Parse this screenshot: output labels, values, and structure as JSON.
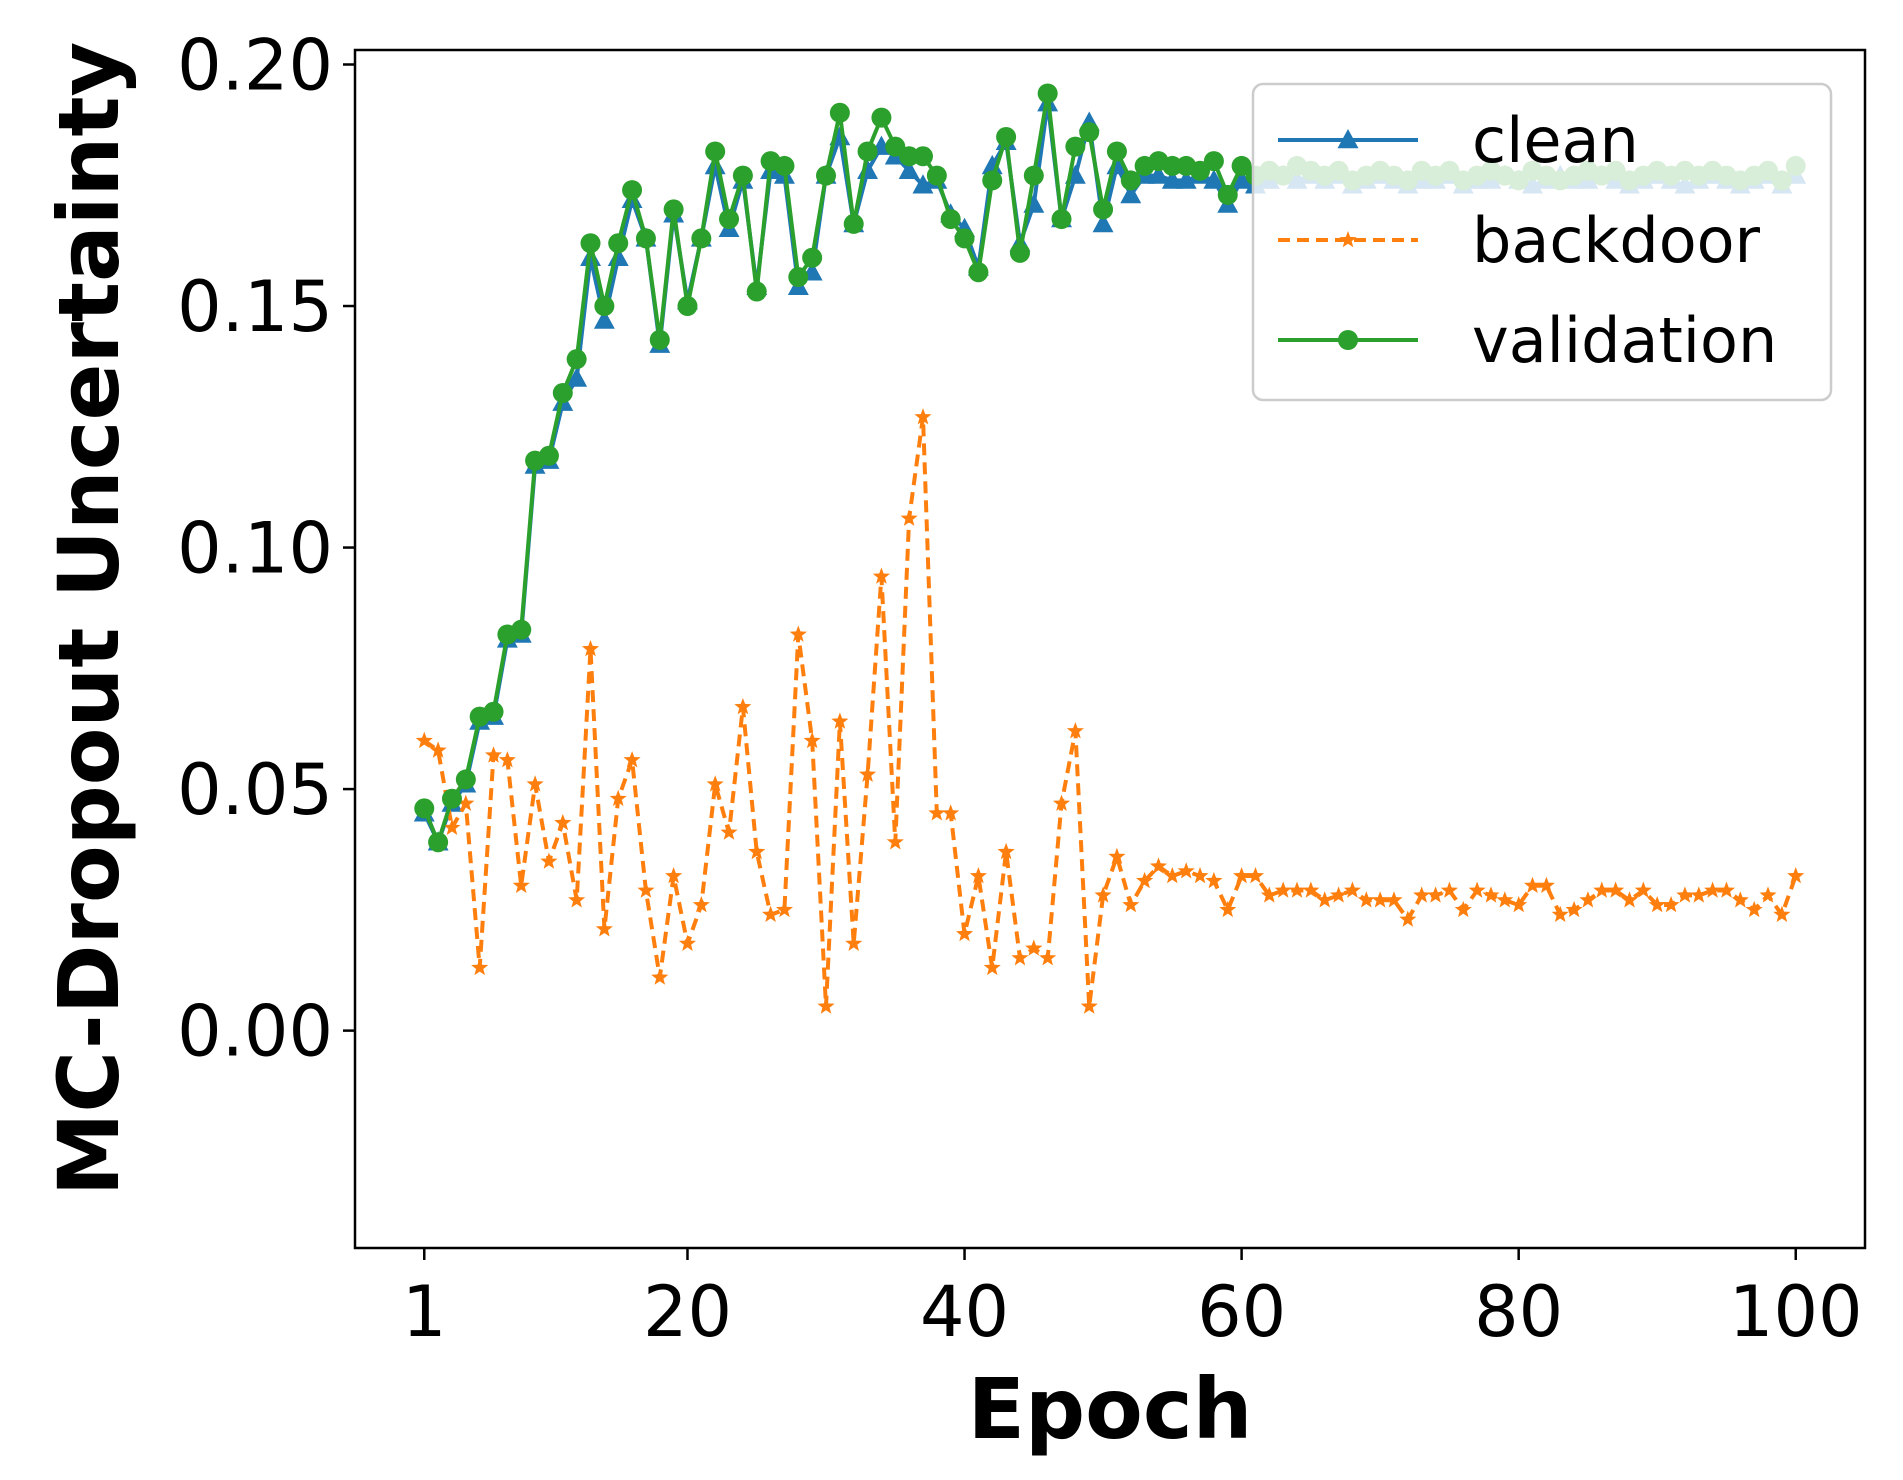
{
  "chart_data": {
    "type": "line",
    "title": "",
    "xlabel": "Epoch",
    "ylabel": "MC-Dropout Uncertainty",
    "xlim": [
      -4,
      105
    ],
    "ylim": [
      -0.045,
      0.203
    ],
    "xticks": [
      1,
      20,
      40,
      60,
      80,
      100
    ],
    "yticks": [
      0.0,
      0.05,
      0.1,
      0.15,
      0.2
    ],
    "ytick_labels": [
      "0.00",
      "0.05",
      "0.10",
      "0.15",
      "0.20"
    ],
    "grid": false,
    "legend": {
      "position": "top-right",
      "entries": [
        "clean",
        "backdoor",
        "validation"
      ]
    },
    "x": [
      1,
      2,
      3,
      4,
      5,
      6,
      7,
      8,
      9,
      10,
      11,
      12,
      13,
      14,
      15,
      16,
      17,
      18,
      19,
      20,
      21,
      22,
      23,
      24,
      25,
      26,
      27,
      28,
      29,
      30,
      31,
      32,
      33,
      34,
      35,
      36,
      37,
      38,
      39,
      40,
      41,
      42,
      43,
      44,
      45,
      46,
      47,
      48,
      49,
      50,
      51,
      52,
      53,
      54,
      55,
      56,
      57,
      58,
      59,
      60,
      61,
      62,
      63,
      64,
      65,
      66,
      67,
      68,
      69,
      70,
      71,
      72,
      73,
      74,
      75,
      76,
      77,
      78,
      79,
      80,
      81,
      82,
      83,
      84,
      85,
      86,
      87,
      88,
      89,
      90,
      91,
      92,
      93,
      94,
      95,
      96,
      97,
      98,
      99,
      100
    ],
    "series": [
      {
        "name": "clean",
        "color": "#1f77b4",
        "marker": "triangle",
        "style": "solid",
        "values": [
          0.045,
          0.039,
          0.047,
          0.051,
          0.064,
          0.065,
          0.081,
          0.082,
          0.117,
          0.118,
          0.13,
          0.135,
          0.16,
          0.147,
          0.16,
          0.172,
          0.164,
          0.142,
          0.169,
          0.151,
          0.164,
          0.179,
          0.166,
          0.176,
          0.154,
          0.178,
          0.177,
          0.154,
          0.157,
          0.177,
          0.185,
          0.167,
          0.178,
          0.183,
          0.181,
          0.178,
          0.175,
          0.176,
          0.169,
          0.166,
          0.158,
          0.179,
          0.184,
          0.163,
          0.171,
          0.192,
          0.168,
          0.177,
          0.188,
          0.167,
          0.179,
          0.173,
          0.177,
          0.177,
          0.176,
          0.176,
          0.177,
          0.176,
          0.171,
          0.176,
          0.175,
          0.176,
          0.177,
          0.176,
          0.177,
          0.176,
          0.177,
          0.175,
          0.176,
          0.177,
          0.176,
          0.175,
          0.176,
          0.176,
          0.177,
          0.175,
          0.176,
          0.176,
          0.177,
          0.176,
          0.175,
          0.176,
          0.177,
          0.176,
          0.176,
          0.177,
          0.176,
          0.175,
          0.176,
          0.177,
          0.176,
          0.175,
          0.176,
          0.177,
          0.176,
          0.175,
          0.176,
          0.177,
          0.175,
          0.177
        ]
      },
      {
        "name": "backdoor",
        "color": "#ff7f0e",
        "marker": "star",
        "style": "dashed",
        "values": [
          0.06,
          0.058,
          0.042,
          0.047,
          0.013,
          0.057,
          0.056,
          0.03,
          0.051,
          0.035,
          0.043,
          0.027,
          0.079,
          0.021,
          0.048,
          0.056,
          0.029,
          0.011,
          0.032,
          0.018,
          0.026,
          0.051,
          0.041,
          0.067,
          0.037,
          0.024,
          0.025,
          0.082,
          0.06,
          0.005,
          0.064,
          0.018,
          0.053,
          0.094,
          0.039,
          0.106,
          0.127,
          0.045,
          0.045,
          0.02,
          0.032,
          0.013,
          0.037,
          0.015,
          0.017,
          0.015,
          0.047,
          0.062,
          0.005,
          0.028,
          0.036,
          0.026,
          0.031,
          0.034,
          0.032,
          0.033,
          0.032,
          0.031,
          0.025,
          0.032,
          0.032,
          0.028,
          0.029,
          0.029,
          0.029,
          0.027,
          0.028,
          0.029,
          0.027,
          0.027,
          0.027,
          0.023,
          0.028,
          0.028,
          0.029,
          0.025,
          0.029,
          0.028,
          0.027,
          0.026,
          0.03,
          0.03,
          0.024,
          0.025,
          0.027,
          0.029,
          0.029,
          0.027,
          0.029,
          0.026,
          0.026,
          0.028,
          0.028,
          0.029,
          0.029,
          0.027,
          0.025,
          0.028,
          0.024,
          0.032
        ]
      },
      {
        "name": "validation",
        "color": "#2ca02c",
        "marker": "circle",
        "style": "solid",
        "values": [
          0.046,
          0.039,
          0.048,
          0.052,
          0.065,
          0.066,
          0.082,
          0.083,
          0.118,
          0.119,
          0.132,
          0.139,
          0.163,
          0.15,
          0.163,
          0.174,
          0.164,
          0.143,
          0.17,
          0.15,
          0.164,
          0.182,
          0.168,
          0.177,
          0.153,
          0.18,
          0.179,
          0.156,
          0.16,
          0.177,
          0.19,
          0.167,
          0.182,
          0.189,
          0.183,
          0.181,
          0.181,
          0.177,
          0.168,
          0.164,
          0.157,
          0.176,
          0.185,
          0.161,
          0.177,
          0.194,
          0.168,
          0.183,
          0.186,
          0.17,
          0.182,
          0.176,
          0.179,
          0.18,
          0.179,
          0.179,
          0.178,
          0.18,
          0.173,
          0.179,
          0.177,
          0.178,
          0.177,
          0.179,
          0.178,
          0.177,
          0.178,
          0.176,
          0.177,
          0.178,
          0.177,
          0.176,
          0.178,
          0.177,
          0.178,
          0.176,
          0.177,
          0.178,
          0.177,
          0.176,
          0.178,
          0.177,
          0.176,
          0.177,
          0.178,
          0.177,
          0.178,
          0.176,
          0.177,
          0.178,
          0.177,
          0.178,
          0.177,
          0.178,
          0.177,
          0.176,
          0.177,
          0.178,
          0.176,
          0.179
        ]
      }
    ]
  }
}
